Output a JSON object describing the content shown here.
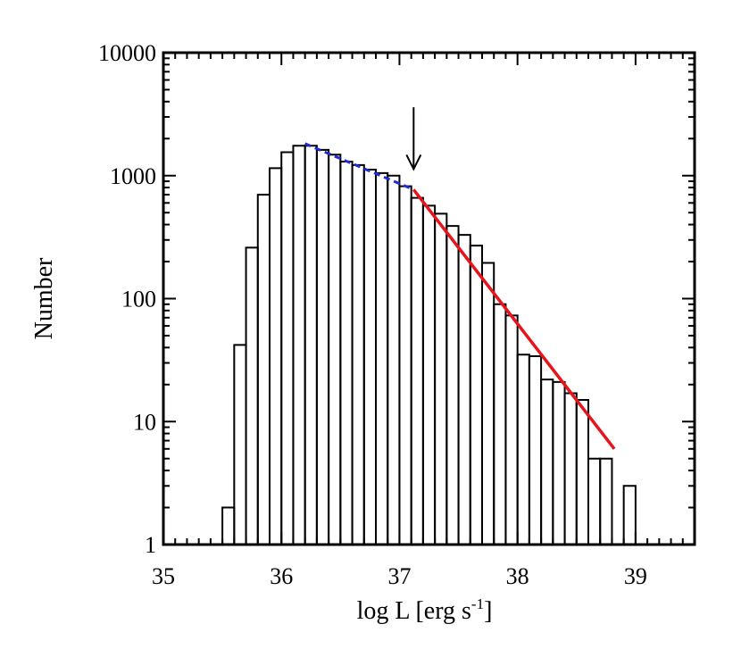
{
  "chart_data": {
    "type": "histogram",
    "xlabel": {
      "text": "log L [erg s",
      "sup": "-1",
      "suffix": "]"
    },
    "ylabel": "Number",
    "xlim": [
      35,
      39.5
    ],
    "ylim": [
      1,
      10000
    ],
    "yscale": "log",
    "x_ticks": [
      35,
      36,
      37,
      38,
      39
    ],
    "x_tick_labels": [
      "35",
      "36",
      "37",
      "38",
      "39"
    ],
    "y_ticks": [
      1,
      10,
      100,
      1000,
      10000
    ],
    "y_tick_labels": [
      "1",
      "10",
      "100",
      "1000",
      "10000"
    ],
    "grid": false,
    "bin_width": 0.1,
    "histogram": [
      {
        "x0": 35.5,
        "count": 2
      },
      {
        "x0": 35.6,
        "count": 42
      },
      {
        "x0": 35.7,
        "count": 260
      },
      {
        "x0": 35.8,
        "count": 700
      },
      {
        "x0": 35.9,
        "count": 1150
      },
      {
        "x0": 36.0,
        "count": 1550
      },
      {
        "x0": 36.1,
        "count": 1750
      },
      {
        "x0": 36.2,
        "count": 1750
      },
      {
        "x0": 36.3,
        "count": 1620
      },
      {
        "x0": 36.4,
        "count": 1480
      },
      {
        "x0": 36.5,
        "count": 1300
      },
      {
        "x0": 36.6,
        "count": 1220
      },
      {
        "x0": 36.7,
        "count": 1120
      },
      {
        "x0": 36.8,
        "count": 1050
      },
      {
        "x0": 36.9,
        "count": 1000
      },
      {
        "x0": 37.0,
        "count": 820
      },
      {
        "x0": 37.1,
        "count": 660
      },
      {
        "x0": 37.2,
        "count": 570
      },
      {
        "x0": 37.3,
        "count": 490
      },
      {
        "x0": 37.4,
        "count": 390
      },
      {
        "x0": 37.5,
        "count": 330
      },
      {
        "x0": 37.6,
        "count": 270
      },
      {
        "x0": 37.7,
        "count": 195
      },
      {
        "x0": 37.8,
        "count": 90
      },
      {
        "x0": 37.9,
        "count": 73
      },
      {
        "x0": 38.0,
        "count": 35
      },
      {
        "x0": 38.1,
        "count": 34
      },
      {
        "x0": 38.2,
        "count": 22
      },
      {
        "x0": 38.3,
        "count": 21
      },
      {
        "x0": 38.4,
        "count": 17
      },
      {
        "x0": 38.5,
        "count": 15
      },
      {
        "x0": 38.6,
        "count": 5
      },
      {
        "x0": 38.7,
        "count": 5
      },
      {
        "x0": 38.9,
        "count": 3
      }
    ],
    "fit_lines": [
      {
        "style": "dashed",
        "color": "#1f2bd6",
        "points": [
          [
            36.2,
            1820
          ],
          [
            37.12,
            770
          ]
        ]
      },
      {
        "style": "solid",
        "color": "#e8141b",
        "points": [
          [
            37.12,
            770
          ],
          [
            38.82,
            6
          ]
        ]
      }
    ],
    "annotations": [
      {
        "type": "arrow-down",
        "x": 37.12,
        "y_from": 3600,
        "y_to": 1130
      }
    ]
  }
}
